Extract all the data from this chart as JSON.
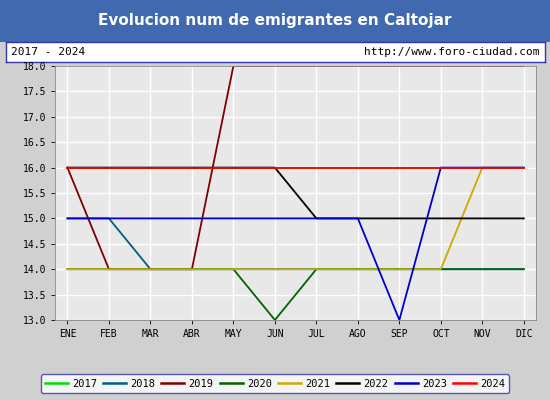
{
  "title": "Evolucion num de emigrantes en Caltojar",
  "subtitle_left": "2017 - 2024",
  "subtitle_right": "http://www.foro-ciudad.com",
  "months": [
    1,
    2,
    3,
    4,
    5,
    6,
    7,
    8,
    9,
    10,
    11,
    12
  ],
  "month_labels": [
    "ENE",
    "FEB",
    "MAR",
    "ABR",
    "MAY",
    "JUN",
    "JUL",
    "AGO",
    "SEP",
    "OCT",
    "NOV",
    "DIC"
  ],
  "ylim": [
    13.0,
    18.0
  ],
  "yticks": [
    13.0,
    13.5,
    14.0,
    14.5,
    15.0,
    15.5,
    16.0,
    16.5,
    17.0,
    17.5,
    18.0
  ],
  "series": [
    {
      "year": "2017",
      "color": "#00dd00",
      "data": [
        [
          1,
          16
        ],
        [
          12,
          16
        ]
      ]
    },
    {
      "year": "2018",
      "color": "#006080",
      "data": [
        [
          1,
          15
        ],
        [
          2,
          15
        ],
        [
          3,
          14
        ],
        [
          12,
          14
        ]
      ]
    },
    {
      "year": "2019",
      "color": "#800000",
      "data": [
        [
          1,
          16
        ],
        [
          2,
          14
        ],
        [
          4,
          14
        ],
        [
          5,
          18
        ],
        [
          12,
          18
        ]
      ]
    },
    {
      "year": "2020",
      "color": "#006400",
      "data": [
        [
          1,
          14
        ],
        [
          5,
          14
        ],
        [
          6,
          13
        ],
        [
          7,
          14
        ],
        [
          12,
          14
        ]
      ]
    },
    {
      "year": "2021",
      "color": "#ccaa00",
      "data": [
        [
          1,
          14
        ],
        [
          10,
          14
        ],
        [
          11,
          16
        ],
        [
          12,
          16
        ]
      ]
    },
    {
      "year": "2022",
      "color": "#000000",
      "data": [
        [
          1,
          16
        ],
        [
          6,
          16
        ],
        [
          7,
          15
        ],
        [
          12,
          15
        ]
      ]
    },
    {
      "year": "2023",
      "color": "#0000cc",
      "data": [
        [
          1,
          15
        ],
        [
          8,
          15
        ],
        [
          9,
          13
        ],
        [
          10,
          16
        ],
        [
          12,
          16
        ]
      ]
    },
    {
      "year": "2024",
      "color": "#ff0000",
      "data": [
        [
          1,
          16
        ],
        [
          12,
          16
        ]
      ]
    }
  ],
  "title_bg_color": "#4169b0",
  "title_text_color": "#ffffff",
  "plot_bg_color": "#e8e8e8",
  "grid_color": "#ffffff",
  "subtitle_box_color": "#ffffff",
  "subtitle_box_border": "#3333aa",
  "legend_border_color": "#3333aa",
  "fig_bg_color": "#d0d0d0"
}
